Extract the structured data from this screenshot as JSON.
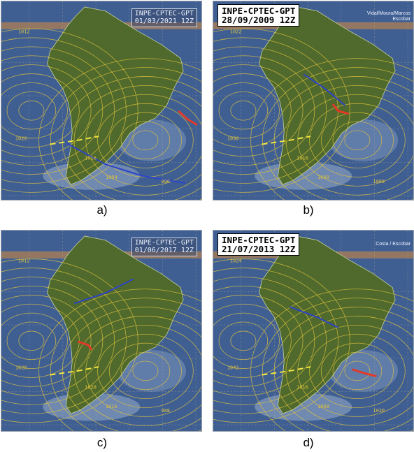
{
  "panels": [
    {
      "id": "a",
      "stamp_line1": "INPE-CPTEC-GPT",
      "stamp_line2": "01/03/2021 12Z",
      "credit_line1": "",
      "credit_line2": "",
      "caption": "a)",
      "isobar_labels": [
        "1012",
        "1020",
        "1016",
        "1004",
        "996"
      ]
    },
    {
      "id": "b",
      "stamp_line1": "INPE-CPTEC-GPT",
      "stamp_line2": "28/09/2009 12Z",
      "credit_line1": "Vidal/Moura/Marcos",
      "credit_line2": "Escobar",
      "caption": "b)",
      "isobar_labels": [
        "1022",
        "1030",
        "1016",
        "1040",
        "1008"
      ]
    },
    {
      "id": "c",
      "stamp_line1": "INPE-CPTEC-GPT",
      "stamp_line2": "01/06/2017 12Z",
      "credit_line1": "",
      "credit_line2": "",
      "caption": "c)",
      "isobar_labels": [
        "1012",
        "1028",
        "1020",
        "1016",
        "988"
      ]
    },
    {
      "id": "d",
      "stamp_line1": "INPE-CPTEC-GPT",
      "stamp_line2": "21/07/2013 12Z",
      "credit_line1": "Costa / Escobar",
      "credit_line2": "",
      "caption": "d)",
      "isobar_labels": [
        "1024",
        "1042",
        "1016",
        "1008",
        "1020"
      ]
    }
  ],
  "colors": {
    "ocean": "#3f5f93",
    "land": "#4f6a2c",
    "isobar": "#e0c23c",
    "trough": "#2f44c8",
    "front_warm": "#e23a2a",
    "front_dash": "#f2e640",
    "label_cyan": "#46d6e8"
  }
}
